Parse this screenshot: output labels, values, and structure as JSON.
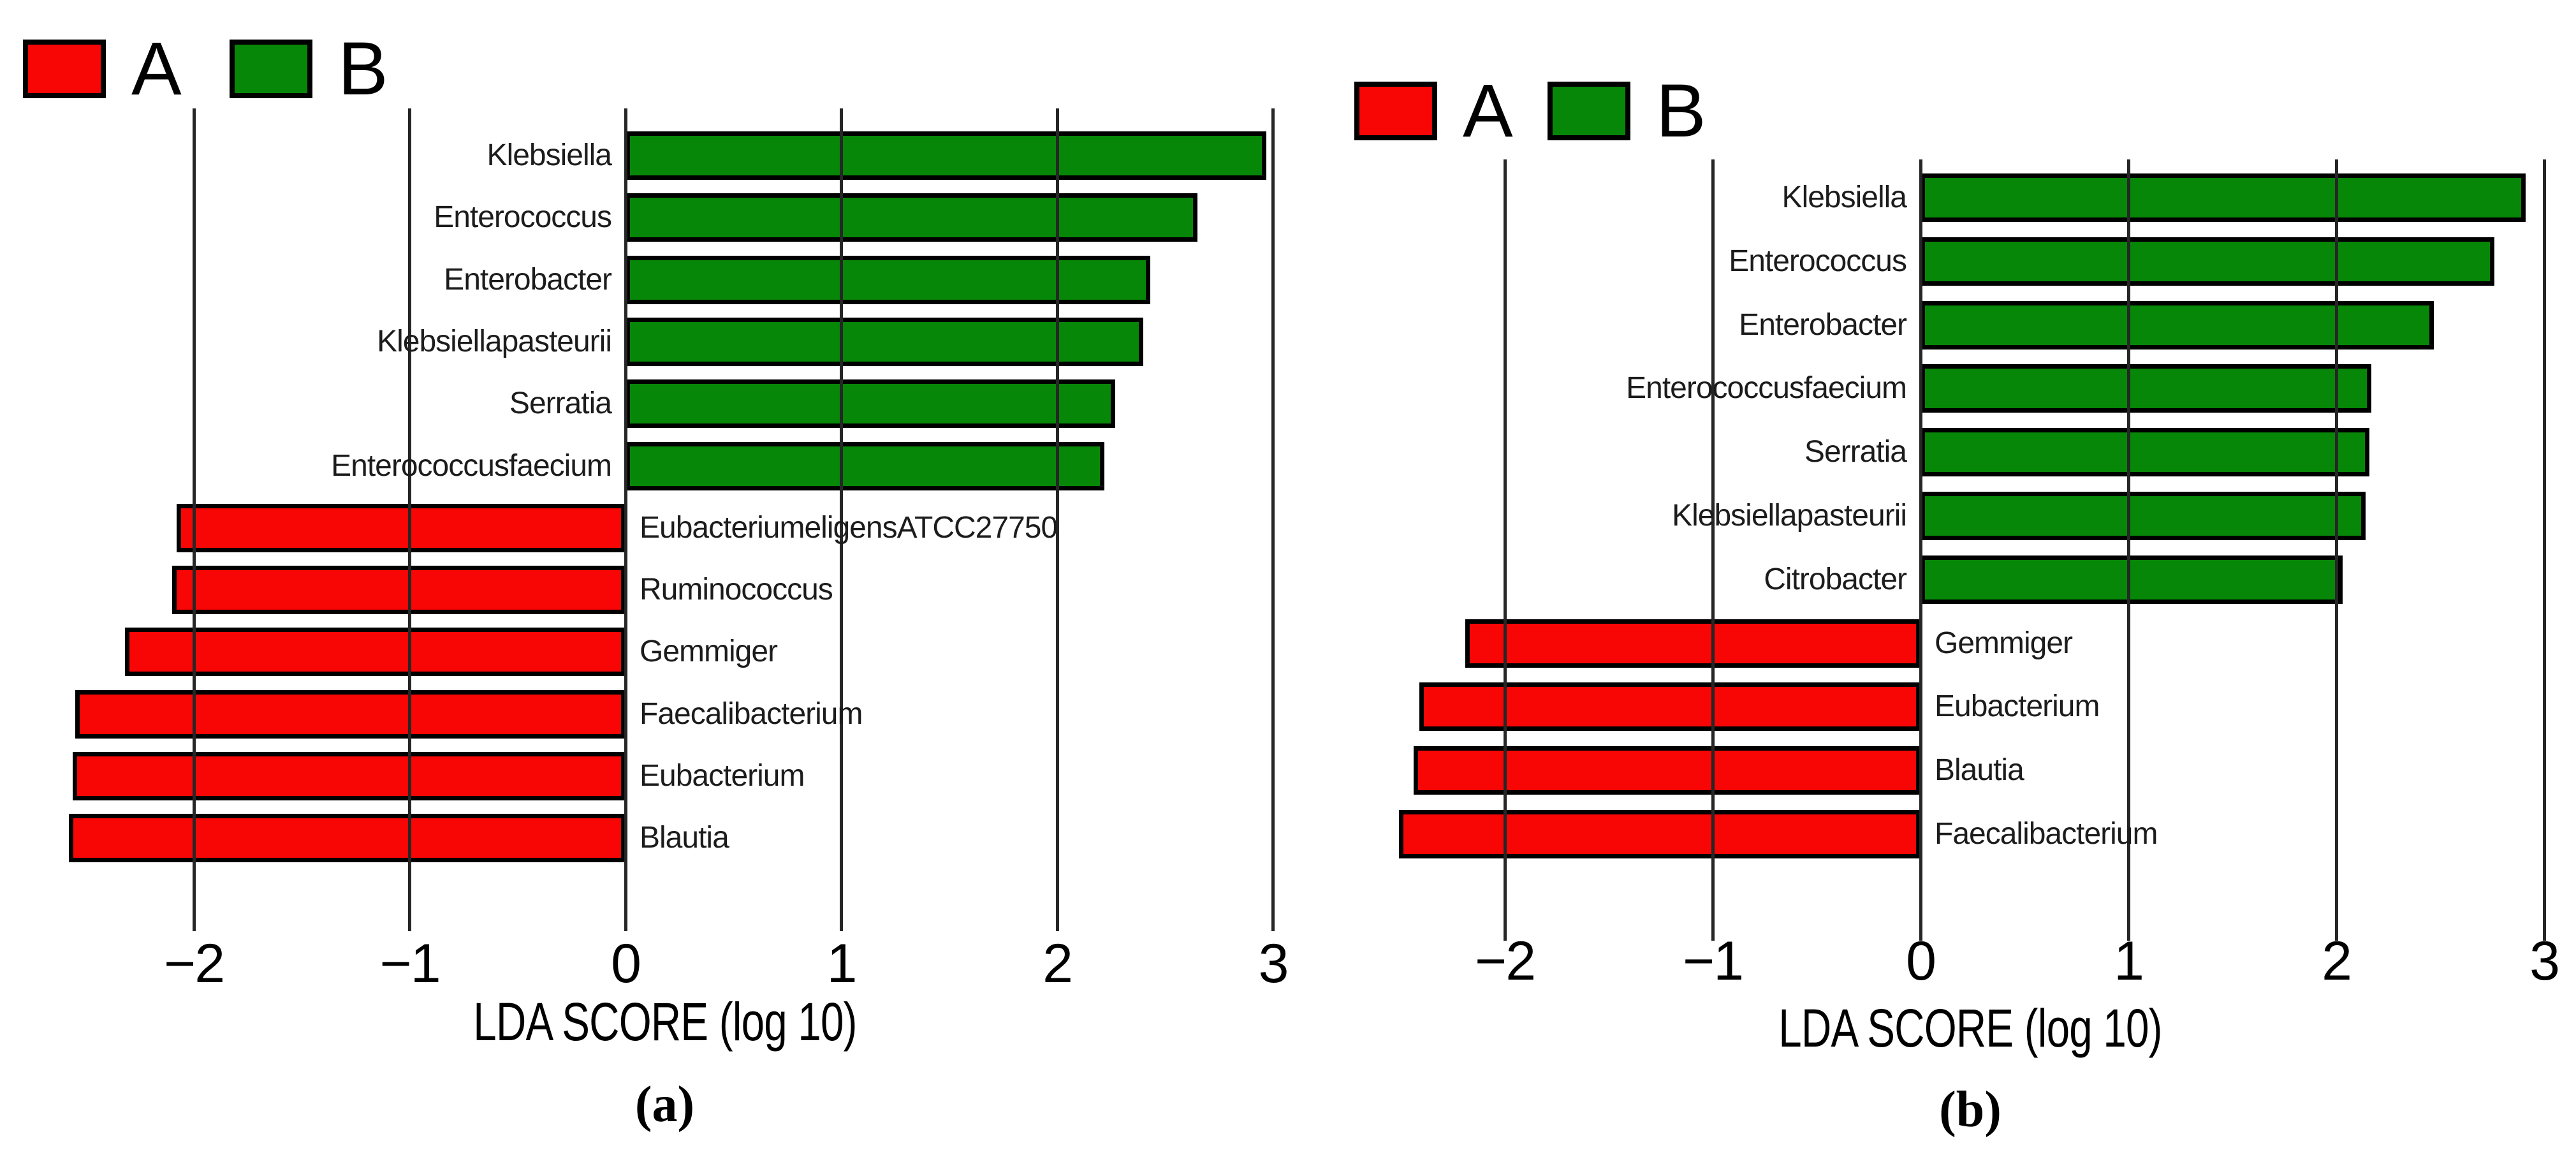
{
  "figure_title": "",
  "chart_data": [
    {
      "id": "a",
      "type": "bar",
      "orientation": "horizontal",
      "caption": "(a)",
      "xlabel": "LDA SCORE (log 10)",
      "xlim": [
        -2.77,
        3.13
      ],
      "xticks": [
        -2,
        -1,
        0,
        1,
        2,
        3
      ],
      "xtick_labels": [
        "−2",
        "−1",
        "0",
        "1",
        "2",
        "3"
      ],
      "grid": "vertical-on",
      "legend_position": "top-left",
      "legend": {
        "items": [
          {
            "label": "A",
            "color": "#f80505"
          },
          {
            "label": "B",
            "color": "#078707"
          }
        ]
      },
      "bars": [
        {
          "label": "Klebsiella",
          "value": 2.97,
          "group": "B"
        },
        {
          "label": "Enterococcus",
          "value": 2.65,
          "group": "B"
        },
        {
          "label": "Enterobacter",
          "value": 2.43,
          "group": "B"
        },
        {
          "label": "Klebsiellapasteurii",
          "value": 2.4,
          "group": "B"
        },
        {
          "label": "Serratia",
          "value": 2.27,
          "group": "B"
        },
        {
          "label": "Enterococcusfaecium",
          "value": 2.22,
          "group": "B"
        },
        {
          "label": "EubacteriumeligensATCC27750",
          "value": -2.08,
          "group": "A"
        },
        {
          "label": "Ruminococcus",
          "value": -2.1,
          "group": "A"
        },
        {
          "label": "Gemmiger",
          "value": -2.32,
          "group": "A"
        },
        {
          "label": "Faecalibacterium",
          "value": -2.55,
          "group": "A"
        },
        {
          "label": "Eubacterium",
          "value": -2.56,
          "group": "A"
        },
        {
          "label": "Blautia",
          "value": -2.58,
          "group": "A"
        }
      ]
    },
    {
      "id": "b",
      "type": "bar",
      "orientation": "horizontal",
      "caption": "(b)",
      "xlabel": "LDA SCORE (log 10)",
      "xlim": [
        -2.67,
        3.15
      ],
      "xticks": [
        -2,
        -1,
        0,
        1,
        2,
        3
      ],
      "xtick_labels": [
        "−2",
        "−1",
        "0",
        "1",
        "2",
        "3"
      ],
      "grid": "vertical-on",
      "legend_position": "top-left",
      "legend": {
        "items": [
          {
            "label": "A",
            "color": "#f80505"
          },
          {
            "label": "B",
            "color": "#078707"
          }
        ]
      },
      "bars": [
        {
          "label": "Klebsiella",
          "value": 2.91,
          "group": "B"
        },
        {
          "label": "Enterococcus",
          "value": 2.76,
          "group": "B"
        },
        {
          "label": "Enterobacter",
          "value": 2.47,
          "group": "B"
        },
        {
          "label": "Enterococcusfaecium",
          "value": 2.17,
          "group": "B"
        },
        {
          "label": "Serratia",
          "value": 2.16,
          "group": "B"
        },
        {
          "label": "Klebsiellapasteurii",
          "value": 2.14,
          "group": "B"
        },
        {
          "label": "Citrobacter",
          "value": 2.03,
          "group": "B"
        },
        {
          "label": "Gemmiger",
          "value": -2.19,
          "group": "A"
        },
        {
          "label": "Eubacterium",
          "value": -2.41,
          "group": "A"
        },
        {
          "label": "Blautia",
          "value": -2.44,
          "group": "A"
        },
        {
          "label": "Faecalibacterium",
          "value": -2.51,
          "group": "A"
        }
      ]
    }
  ]
}
